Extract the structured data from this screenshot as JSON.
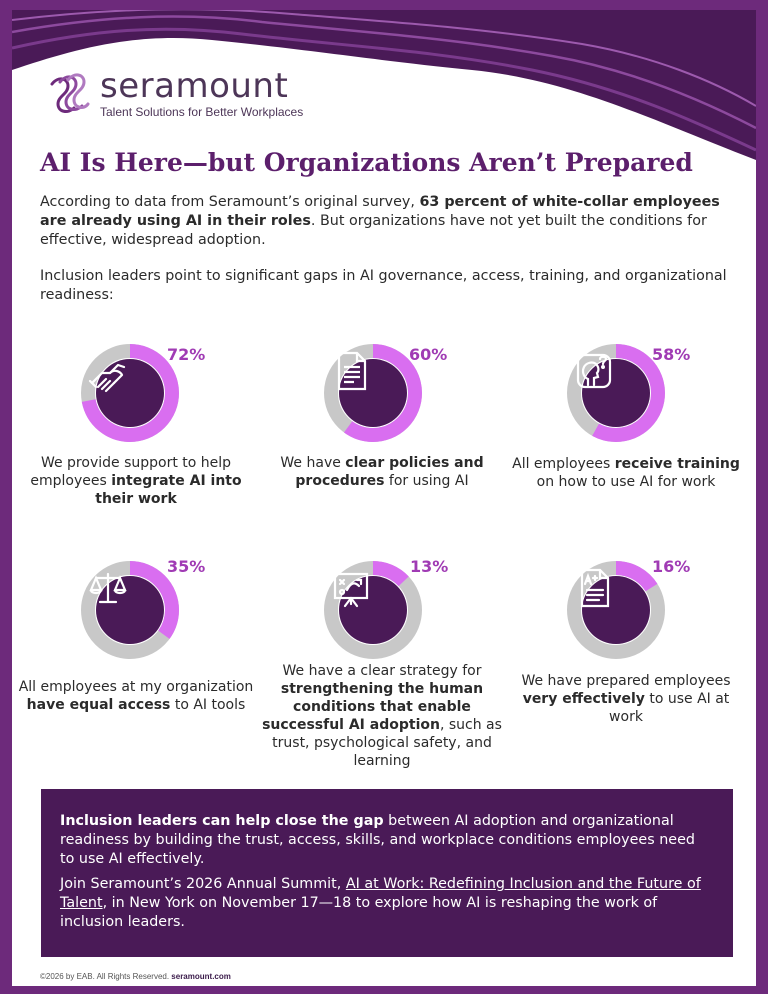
{
  "brand": {
    "name": "seramount",
    "tagline": "Talent Solutions for Better Workplaces"
  },
  "title": "AI Is Here—but Organizations Aren’t Prepared",
  "intro": {
    "p1_a": "According to data from Seramount’s original survey, ",
    "p1_b": "63 percent of white-collar employees are already using AI in their roles",
    "p1_c": ". But organizations have not yet built the conditions for effective, widespread adoption.",
    "p2": "Inclusion leaders point to significant gaps in AI governance, access, training, and organizational readiness:"
  },
  "colors": {
    "accent": "#d96ef0",
    "track": "#c8c8c8",
    "dark": "#4a1a57",
    "title": "#5c1f6c",
    "pct": "#a03bb4"
  },
  "stats": [
    {
      "value": 72,
      "label": "72%",
      "icon": "handshake-icon",
      "cap_a": "We provide support to help employees ",
      "cap_b": "integrate AI into their work",
      "cap_c": ""
    },
    {
      "value": 60,
      "label": "60%",
      "icon": "document-icon",
      "cap_a": "We have ",
      "cap_b": "clear policies and procedures",
      "cap_c": " for using AI"
    },
    {
      "value": 58,
      "label": "58%",
      "icon": "head-question-icon",
      "cap_a": "All employees ",
      "cap_b": "receive training",
      "cap_c": " on how to use AI for work"
    },
    {
      "value": 35,
      "label": "35%",
      "icon": "scales-icon",
      "cap_a": "All employees at my organization ",
      "cap_b": "have equal access",
      "cap_c": " to AI tools"
    },
    {
      "value": 13,
      "label": "13%",
      "icon": "strategy-board-icon",
      "cap_a": "We have a clear strategy for ",
      "cap_b": "strengthening the human conditions that enable successful AI adoption",
      "cap_c": ", such as trust, psychological safety, and learning"
    },
    {
      "value": 16,
      "label": "16%",
      "icon": "graded-paper-icon",
      "cap_a": "We have prepared employees ",
      "cap_b": "very effectively",
      "cap_c": " to use AI at work"
    }
  ],
  "callout": {
    "p1_bold": "Inclusion leaders can help close the gap",
    "p1_rest": " between AI adoption and organizational readiness by building the trust, access, skills, and workplace conditions employees need to use AI effectively.",
    "p2_a": "Join Seramount’s 2026 Annual Summit, ",
    "p2_link": "AI at Work: Redefining Inclusion and the Future of Talent",
    "p2_b": ", in New York on November 17—18 to explore how AI is reshaping the work of inclusion leaders."
  },
  "footer": {
    "copyright": "©2026 by EAB. All Rights Reserved. ",
    "site": "seramount.com"
  }
}
